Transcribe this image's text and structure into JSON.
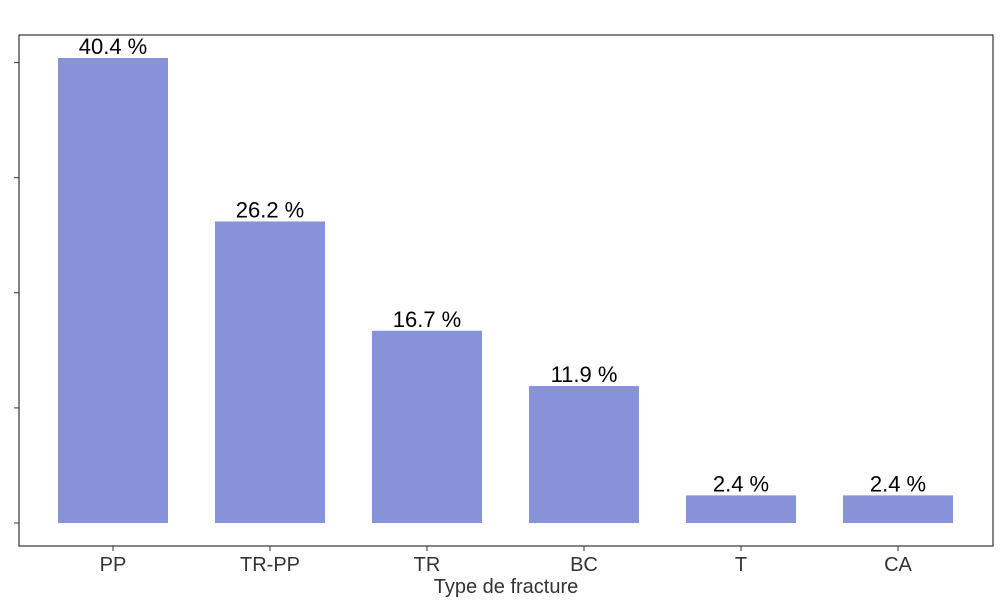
{
  "chart_data": {
    "type": "bar",
    "categories": [
      "PP",
      "TR-PP",
      "TR",
      "BC",
      "T",
      "CA"
    ],
    "values": [
      40.4,
      26.2,
      16.7,
      11.9,
      2.4,
      2.4
    ],
    "value_labels": [
      "40.4 %",
      "26.2 %",
      "16.7 %",
      "11.9 %",
      "2.4 %",
      "2.4 %"
    ],
    "title": "",
    "xlabel": "Type de fracture",
    "ylabel": "",
    "ylim": [
      0,
      40.4
    ],
    "grid": false,
    "y_tick_labels_shown": false,
    "bar_color": "#8792D9"
  }
}
